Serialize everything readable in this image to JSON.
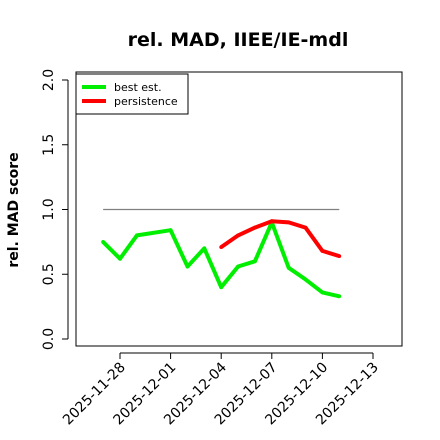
{
  "chart_data": {
    "type": "line",
    "title": "rel. MAD, IIEE/IE-mdl",
    "ylabel": "rel. MAD score",
    "xlabel": "",
    "ylim": [
      0.0,
      2.0
    ],
    "yticks": [
      "0.0",
      "0.5",
      "1.0",
      "1.5",
      "2.0"
    ],
    "xlim": [
      "2025-11-25",
      "2025-12-15"
    ],
    "xticks": [
      "2025-11-28",
      "2025-12-01",
      "2025-12-04",
      "2025-12-07",
      "2025-12-10",
      "2025-12-13"
    ],
    "reference_line": {
      "y": 1.0,
      "x_start": "2025-11-27",
      "x_end": "2025-12-11",
      "color": "#808080"
    },
    "legend_position": "top-left",
    "series": [
      {
        "name": "best est.",
        "color": "#00ee00",
        "points": [
          [
            "2025-11-27",
            0.75
          ],
          [
            "2025-11-28",
            0.62
          ],
          [
            "2025-11-29",
            0.8
          ],
          [
            "2025-12-01",
            0.84
          ],
          [
            "2025-12-02",
            0.56
          ],
          [
            "2025-12-03",
            0.7
          ],
          [
            "2025-12-04",
            0.4
          ],
          [
            "2025-12-05",
            0.56
          ],
          [
            "2025-12-06",
            0.6
          ],
          [
            "2025-12-07",
            0.9
          ],
          [
            "2025-12-08",
            0.55
          ],
          [
            "2025-12-09",
            0.46
          ],
          [
            "2025-12-10",
            0.36
          ],
          [
            "2025-12-11",
            0.33
          ]
        ]
      },
      {
        "name": "persistence",
        "color": "#ff0000",
        "points": [
          [
            "2025-12-04",
            0.71
          ],
          [
            "2025-12-05",
            0.8
          ],
          [
            "2025-12-06",
            0.86
          ],
          [
            "2025-12-07",
            0.91
          ],
          [
            "2025-12-08",
            0.9
          ],
          [
            "2025-12-09",
            0.86
          ],
          [
            "2025-12-10",
            0.68
          ],
          [
            "2025-12-11",
            0.64
          ]
        ]
      }
    ]
  }
}
